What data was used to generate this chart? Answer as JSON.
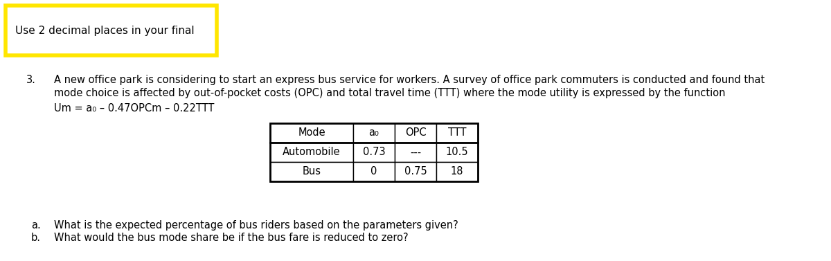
{
  "yellow_box_text": "Use 2 decimal places in your final",
  "yellow_border_color": "#FFE600",
  "yellow_fill_color": "#FFFFFF",
  "question_number": "3.",
  "question_text_line1": "A new office park is considering to start an express bus service for workers. A survey of office park commuters is conducted and found that",
  "question_text_line2": "mode choice is affected by out-of-pocket costs (OPC) and total travel time (TTT) where the mode utility is expressed by the function",
  "question_text_line3": "Um = a₀ – 0.47OPCm – 0.22TTT",
  "table_col_headers": [
    "Mode",
    "a₀",
    "OPC",
    "TTT"
  ],
  "table_row1": [
    "Automobile",
    "0.73",
    "---",
    "10.5"
  ],
  "table_row2": [
    "Bus",
    "0",
    "0.75",
    "18"
  ],
  "part_a_label": "a.",
  "part_a": "What is the expected percentage of bus riders based on the parameters given?",
  "part_b_label": "b.",
  "part_b": "What would the bus mode share be if the bus fare is reduced to zero?",
  "font_size_body": 10.5,
  "font_size_table": 10.5,
  "font_size_yellow": 11,
  "text_color": "#000000",
  "background_color": "#FFFFFF"
}
